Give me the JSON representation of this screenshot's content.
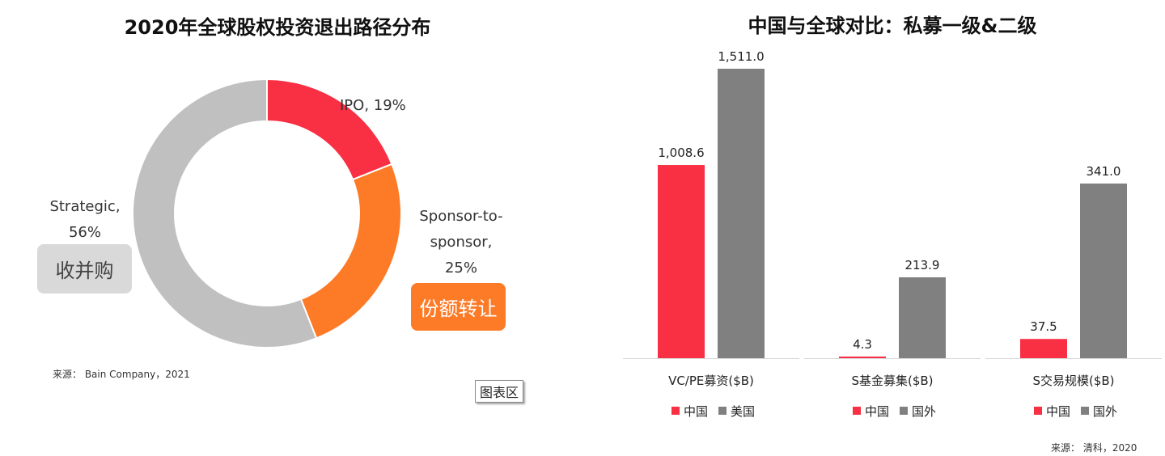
{
  "colors": {
    "red": "#f92f44",
    "orange": "#fd7a27",
    "gray": "#c0c0c0",
    "darkgray": "#808080"
  },
  "chart_data": [
    {
      "type": "pie",
      "title": "2020年全球股权投资退出路径分布",
      "slices": [
        {
          "label": "IPO, 19%",
          "value": 19,
          "color": "#f92f44"
        },
        {
          "label_lines": [
            "Sponsor-to-",
            "sponsor,",
            "25%"
          ],
          "value": 25,
          "color": "#fd7a27",
          "badge": "份额转让"
        },
        {
          "label_lines": [
            "Strategic,",
            "56%"
          ],
          "value": 56,
          "color": "#c0c0c0",
          "badge": "收并购"
        }
      ],
      "source": "来源： Bain Company，2021",
      "tooltip": "图表区"
    },
    {
      "type": "bar",
      "title": "中国与全球对比：私募一级&二级",
      "groups": [
        {
          "category": "VC/PE募资($B)",
          "series": [
            {
              "name": "中国",
              "value": 1008.6,
              "label": "1,008.6",
              "color": "#f92f44"
            },
            {
              "name": "美国",
              "value": 1511.0,
              "label": "1,511.0",
              "color": "#808080"
            }
          ]
        },
        {
          "category": "S基金募集($B)",
          "series": [
            {
              "name": "中国",
              "value": 4.3,
              "label": "4.3",
              "color": "#f92f44"
            },
            {
              "name": "国外",
              "value": 213.9,
              "label": "213.9",
              "color": "#808080"
            }
          ]
        },
        {
          "category": "S交易规模($B)",
          "series": [
            {
              "name": "中国",
              "value": 37.5,
              "label": "37.5",
              "color": "#f92f44"
            },
            {
              "name": "国外",
              "value": 341.0,
              "label": "341.0",
              "color": "#808080"
            }
          ]
        }
      ],
      "source": "来源： 清科，2020"
    }
  ]
}
